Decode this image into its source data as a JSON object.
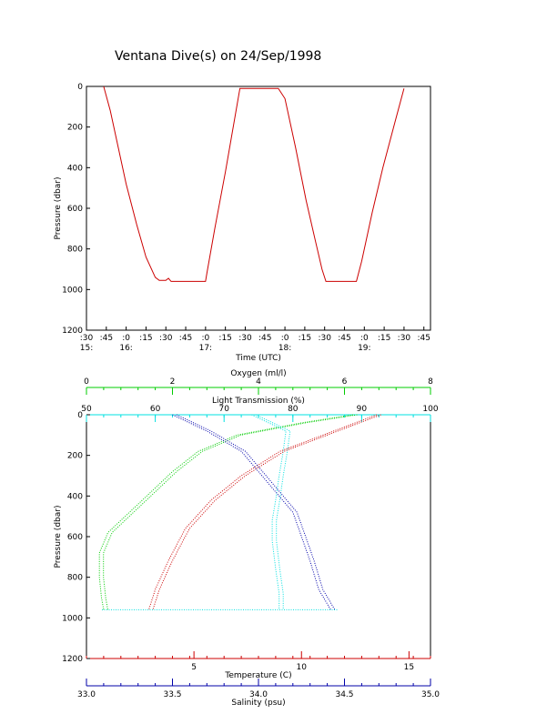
{
  "title": "Ventana Dive(s) on 24/Sep/1998",
  "chart_data": [
    {
      "type": "line",
      "xlabel": "Time (UTC)",
      "ylabel": "Pressure (dbar)",
      "x_ticks": [
        {
          "t": 0,
          "line1": ":30",
          "line2": "15:"
        },
        {
          "t": 15,
          "line1": ":45",
          "line2": ""
        },
        {
          "t": 30,
          "line1": ":0",
          "line2": "16:"
        },
        {
          "t": 45,
          "line1": ":15",
          "line2": ""
        },
        {
          "t": 60,
          "line1": ":30",
          "line2": ""
        },
        {
          "t": 75,
          "line1": ":45",
          "line2": ""
        },
        {
          "t": 90,
          "line1": ":0",
          "line2": "17:"
        },
        {
          "t": 105,
          "line1": ":15",
          "line2": ""
        },
        {
          "t": 120,
          "line1": ":30",
          "line2": ""
        },
        {
          "t": 135,
          "line1": ":45",
          "line2": ""
        },
        {
          "t": 150,
          "line1": ":0",
          "line2": "18:"
        },
        {
          "t": 165,
          "line1": ":15",
          "line2": ""
        },
        {
          "t": 180,
          "line1": ":30",
          "line2": ""
        },
        {
          "t": 195,
          "line1": ":45",
          "line2": ""
        },
        {
          "t": 210,
          "line1": ":0",
          "line2": "19:"
        },
        {
          "t": 225,
          "line1": ":15",
          "line2": ""
        },
        {
          "t": 240,
          "line1": ":30",
          "line2": ""
        },
        {
          "t": 255,
          "line1": ":45",
          "line2": ""
        }
      ],
      "xlim_minutes": [
        0,
        260
      ],
      "y_ticks": [
        0,
        200,
        400,
        600,
        800,
        1000,
        1200
      ],
      "ylim": [
        1200,
        0
      ],
      "color": "#cc0000",
      "series_points": [
        [
          13,
          0
        ],
        [
          18,
          120
        ],
        [
          24,
          300
        ],
        [
          30,
          480
        ],
        [
          38,
          680
        ],
        [
          45,
          840
        ],
        [
          52,
          940
        ],
        [
          55,
          955
        ],
        [
          60,
          955
        ],
        [
          62,
          945
        ],
        [
          64,
          960
        ],
        [
          90,
          960
        ],
        [
          91,
          920
        ],
        [
          97,
          700
        ],
        [
          105,
          420
        ],
        [
          112,
          160
        ],
        [
          116,
          10
        ],
        [
          120,
          10
        ],
        [
          145,
          10
        ],
        [
          150,
          60
        ],
        [
          158,
          300
        ],
        [
          166,
          560
        ],
        [
          173,
          760
        ],
        [
          178,
          900
        ],
        [
          181,
          960
        ],
        [
          204,
          960
        ],
        [
          208,
          860
        ],
        [
          216,
          620
        ],
        [
          224,
          400
        ],
        [
          233,
          180
        ],
        [
          240,
          10
        ]
      ]
    },
    {
      "type": "scatter",
      "ylabel": "Pressure (dbar)",
      "y_ticks": [
        0,
        200,
        400,
        600,
        800,
        1000,
        1200
      ],
      "ylim": [
        1200,
        0
      ],
      "axes": [
        {
          "name": "Oxygen (ml/l)",
          "color": "#00cc00",
          "range": [
            0,
            8
          ],
          "ticks": [
            0,
            2,
            4,
            6,
            8
          ]
        },
        {
          "name": "Light Transmission (%)",
          "color": "#00e0e0",
          "range": [
            50,
            100
          ],
          "ticks": [
            50,
            60,
            70,
            80,
            90,
            100
          ]
        },
        {
          "name": "Temperature (C)",
          "color": "#cc0000",
          "range": [
            0,
            16
          ],
          "ticks": [
            5,
            10,
            15
          ]
        },
        {
          "name": "Salinity (psu)",
          "color": "#0000aa",
          "range": [
            33.0,
            35.0
          ],
          "ticks": [
            "33.0",
            "33.5",
            "34.0",
            "34.5",
            "35.0"
          ]
        }
      ],
      "profiles": {
        "oxygen": [
          [
            6.2,
            0
          ],
          [
            5.0,
            40
          ],
          [
            3.5,
            100
          ],
          [
            2.6,
            180
          ],
          [
            2.0,
            280
          ],
          [
            1.5,
            380
          ],
          [
            1.0,
            480
          ],
          [
            0.5,
            580
          ],
          [
            0.3,
            680
          ],
          [
            0.3,
            800
          ],
          [
            0.35,
            900
          ],
          [
            0.4,
            960
          ]
        ],
        "transmission": [
          [
            74,
            0
          ],
          [
            79,
            80
          ],
          [
            78.5,
            200
          ],
          [
            78,
            300
          ],
          [
            77.5,
            420
          ],
          [
            77,
            520
          ],
          [
            77,
            620
          ],
          [
            77.5,
            760
          ],
          [
            78,
            880
          ],
          [
            78,
            960
          ]
        ],
        "temperature": [
          [
            13.5,
            0
          ],
          [
            11.5,
            80
          ],
          [
            9.0,
            180
          ],
          [
            7.2,
            300
          ],
          [
            5.8,
            420
          ],
          [
            4.6,
            560
          ],
          [
            3.8,
            720
          ],
          [
            3.2,
            860
          ],
          [
            2.9,
            960
          ]
        ],
        "salinity": [
          [
            33.5,
            0
          ],
          [
            33.7,
            80
          ],
          [
            33.9,
            180
          ],
          [
            34.0,
            280
          ],
          [
            34.1,
            380
          ],
          [
            34.2,
            480
          ],
          [
            34.25,
            600
          ],
          [
            34.3,
            720
          ],
          [
            34.35,
            860
          ],
          [
            34.42,
            960
          ]
        ]
      }
    }
  ]
}
